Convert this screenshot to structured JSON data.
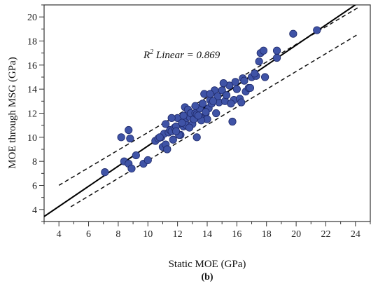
{
  "chart_data": {
    "type": "scatter",
    "title": "",
    "xlabel": "Static MOE (GPa)",
    "ylabel": "MOE through MSG (GPa)",
    "caption": "(b)",
    "annotation": {
      "prefix": "R",
      "superscript": "2",
      "rest": " Linear = 0.869"
    },
    "xlim": [
      3,
      25
    ],
    "ylim": [
      3,
      21
    ],
    "x_ticks": [
      "4",
      "6",
      "8",
      "10",
      "12",
      "14",
      "16",
      "18",
      "20",
      "22",
      "24"
    ],
    "y_ticks": [
      "4",
      "6",
      "8",
      "10",
      "12",
      "14",
      "16",
      "18",
      "20"
    ],
    "grid": false,
    "legend": "none",
    "marker_color": "#3f53a6",
    "marker_edge": "#1f2a6b",
    "fit_line": {
      "slope": 0.838,
      "intercept": 0.9,
      "x_range": [
        3,
        25
      ],
      "style": "solid"
    },
    "confidence_bands": [
      {
        "slope": 0.732,
        "intercept": 3.08,
        "x_range": [
          4,
          24.2
        ],
        "style": "dashed"
      },
      {
        "slope": 0.74,
        "intercept": 0.67,
        "x_range": [
          4.8,
          24.2
        ],
        "style": "dashed"
      }
    ],
    "x": [
      7.1,
      8.2,
      8.4,
      8.7,
      8.7,
      8.8,
      8.9,
      9.2,
      9.7,
      10.0,
      10.5,
      10.7,
      10.9,
      11.0,
      11.1,
      11.2,
      11.3,
      11.4,
      11.5,
      11.6,
      11.7,
      11.8,
      11.9,
      12.0,
      12.2,
      12.4,
      12.5,
      12.5,
      12.6,
      12.7,
      12.8,
      12.9,
      13.0,
      13.1,
      13.2,
      13.3,
      13.3,
      13.5,
      13.6,
      13.7,
      13.8,
      13.9,
      14.0,
      14.1,
      14.2,
      14.3,
      14.5,
      14.6,
      14.8,
      15.0,
      15.2,
      15.3,
      15.5,
      15.7,
      15.8,
      16.0,
      16.2,
      16.3,
      16.4,
      16.6,
      16.8,
      17.0,
      17.3,
      17.5,
      17.6,
      17.8,
      18.7,
      18.7,
      19.8,
      21.4,
      11.2,
      11.6,
      12.1,
      12.4,
      13.2,
      13.6,
      14.2,
      15.1,
      15.6,
      16.5,
      17.2,
      10.8,
      12.8,
      14.7,
      11.9,
      13.4,
      15.9,
      12.3,
      13.9,
      14.4,
      16.9,
      17.9
    ],
    "y": [
      7.1,
      10.0,
      8.0,
      10.6,
      7.8,
      9.9,
      7.4,
      8.5,
      7.8,
      8.1,
      9.7,
      9.9,
      10.0,
      9.2,
      10.3,
      9.4,
      9.0,
      10.4,
      10.6,
      10.5,
      9.8,
      10.8,
      10.9,
      11.6,
      10.2,
      10.9,
      11.3,
      12.5,
      11.0,
      12.3,
      11.7,
      12.0,
      11.1,
      11.5,
      12.0,
      10.0,
      11.9,
      12.4,
      11.6,
      12.8,
      13.6,
      12.0,
      11.5,
      12.4,
      13.1,
      12.8,
      13.9,
      12.0,
      12.9,
      13.9,
      13.0,
      13.5,
      14.3,
      11.3,
      13.1,
      14.0,
      13.2,
      12.9,
      14.9,
      13.8,
      14.1,
      15.0,
      15.1,
      16.3,
      17.0,
      17.2,
      16.6,
      17.2,
      18.6,
      18.9,
      11.1,
      11.6,
      10.2,
      11.8,
      12.6,
      11.4,
      13.6,
      14.5,
      12.8,
      14.7,
      15.3,
      10.0,
      10.8,
      13.4,
      10.5,
      11.8,
      14.6,
      11.2,
      12.1,
      13.0,
      14.1,
      15.0
    ]
  }
}
